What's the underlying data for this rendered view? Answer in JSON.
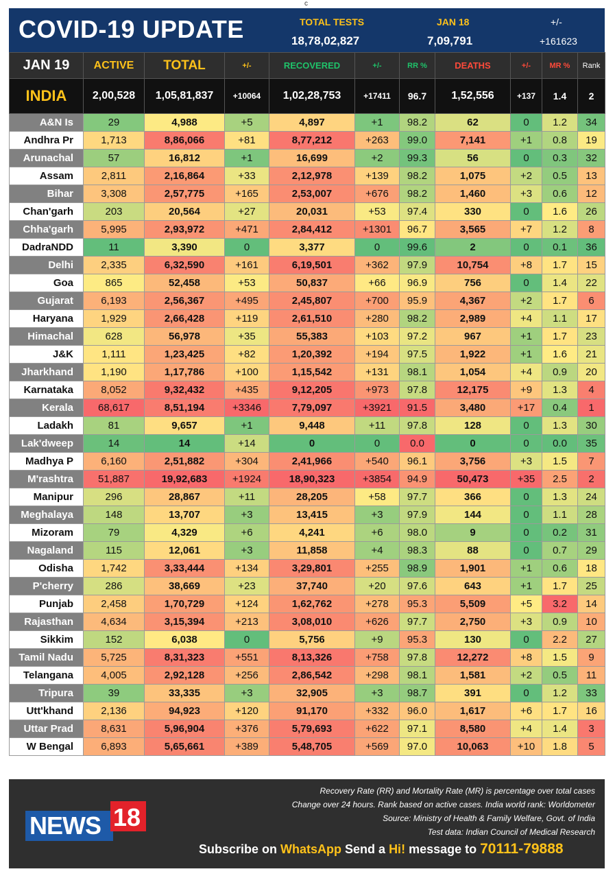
{
  "corner_mark": "c",
  "header": {
    "title": "COVID-19 UPDATE",
    "tests_label": "TOTAL TESTS",
    "tests_value": "18,78,02,827",
    "date_label": "JAN 18",
    "date_value": "7,09,791",
    "change_label": "+/-",
    "change_value": "+161623"
  },
  "columns": [
    "JAN 19",
    "ACTIVE",
    "TOTAL",
    "+/-",
    "RECOVERED",
    "+/-",
    "RR %",
    "DEATHS",
    "+/-",
    "MR %",
    "Rank"
  ],
  "india": [
    "INDIA",
    "2,00,528",
    "1,05,81,837",
    "+10064",
    "1,02,28,753",
    "+17411",
    "96.7",
    "1,52,556",
    "+137",
    "1.4",
    "2"
  ],
  "rows": [
    [
      "A&N Is",
      "29",
      "4,988",
      "+5",
      "4,897",
      "+1",
      "98.2",
      "62",
      "0",
      "1.2",
      "34"
    ],
    [
      "Andhra Pr",
      "1,713",
      "8,86,066",
      "+81",
      "8,77,212",
      "+263",
      "99.0",
      "7,141",
      "+1",
      "0.8",
      "19"
    ],
    [
      "Arunachal",
      "57",
      "16,812",
      "+1",
      "16,699",
      "+2",
      "99.3",
      "56",
      "0",
      "0.3",
      "32"
    ],
    [
      "Assam",
      "2,811",
      "2,16,864",
      "+33",
      "2,12,978",
      "+139",
      "98.2",
      "1,075",
      "+2",
      "0.5",
      "13"
    ],
    [
      "Bihar",
      "3,308",
      "2,57,775",
      "+165",
      "2,53,007",
      "+676",
      "98.2",
      "1,460",
      "+3",
      "0.6",
      "12"
    ],
    [
      "Chan'garh",
      "203",
      "20,564",
      "+27",
      "20,031",
      "+53",
      "97.4",
      "330",
      "0",
      "1.6",
      "26"
    ],
    [
      "Chha'garh",
      "5,995",
      "2,93,972",
      "+471",
      "2,84,412",
      "+1301",
      "96.7",
      "3,565",
      "+7",
      "1.2",
      "8"
    ],
    [
      "DadraNDD",
      "11",
      "3,390",
      "0",
      "3,377",
      "0",
      "99.6",
      "2",
      "0",
      "0.1",
      "36"
    ],
    [
      "Delhi",
      "2,335",
      "6,32,590",
      "+161",
      "6,19,501",
      "+362",
      "97.9",
      "10,754",
      "+8",
      "1.7",
      "15"
    ],
    [
      "Goa",
      "865",
      "52,458",
      "+53",
      "50,837",
      "+66",
      "96.9",
      "756",
      "0",
      "1.4",
      "22"
    ],
    [
      "Gujarat",
      "6,193",
      "2,56,367",
      "+495",
      "2,45,807",
      "+700",
      "95.9",
      "4,367",
      "+2",
      "1.7",
      "6"
    ],
    [
      "Haryana",
      "1,929",
      "2,66,428",
      "+119",
      "2,61,510",
      "+280",
      "98.2",
      "2,989",
      "+4",
      "1.1",
      "17"
    ],
    [
      "Himachal",
      "628",
      "56,978",
      "+35",
      "55,383",
      "+103",
      "97.2",
      "967",
      "+1",
      "1.7",
      "23"
    ],
    [
      "J&K",
      "1,111",
      "1,23,425",
      "+82",
      "1,20,392",
      "+194",
      "97.5",
      "1,922",
      "+1",
      "1.6",
      "21"
    ],
    [
      "Jharkhand",
      "1,190",
      "1,17,786",
      "+100",
      "1,15,542",
      "+131",
      "98.1",
      "1,054",
      "+4",
      "0.9",
      "20"
    ],
    [
      "Karnataka",
      "8,052",
      "9,32,432",
      "+435",
      "9,12,205",
      "+973",
      "97.8",
      "12,175",
      "+9",
      "1.3",
      "4"
    ],
    [
      "Kerala",
      "68,617",
      "8,51,194",
      "+3346",
      "7,79,097",
      "+3921",
      "91.5",
      "3,480",
      "+17",
      "0.4",
      "1"
    ],
    [
      "Ladakh",
      "81",
      "9,657",
      "+1",
      "9,448",
      "+11",
      "97.8",
      "128",
      "0",
      "1.3",
      "30"
    ],
    [
      "Lak'dweep",
      "14",
      "14",
      "+14",
      "0",
      "0",
      "0.0",
      "0",
      "0",
      "0.0",
      "35"
    ],
    [
      "Madhya P",
      "6,160",
      "2,51,882",
      "+304",
      "2,41,966",
      "+540",
      "96.1",
      "3,756",
      "+3",
      "1.5",
      "7"
    ],
    [
      "M'rashtra",
      "51,887",
      "19,92,683",
      "+1924",
      "18,90,323",
      "+3854",
      "94.9",
      "50,473",
      "+35",
      "2.5",
      "2"
    ],
    [
      "Manipur",
      "296",
      "28,867",
      "+11",
      "28,205",
      "+58",
      "97.7",
      "366",
      "0",
      "1.3",
      "24"
    ],
    [
      "Meghalaya",
      "148",
      "13,707",
      "+3",
      "13,415",
      "+3",
      "97.9",
      "144",
      "0",
      "1.1",
      "28"
    ],
    [
      "Mizoram",
      "79",
      "4,329",
      "+6",
      "4,241",
      "+6",
      "98.0",
      "9",
      "0",
      "0.2",
      "31"
    ],
    [
      "Nagaland",
      "115",
      "12,061",
      "+3",
      "11,858",
      "+4",
      "98.3",
      "88",
      "0",
      "0.7",
      "29"
    ],
    [
      "Odisha",
      "1,742",
      "3,33,444",
      "+134",
      "3,29,801",
      "+255",
      "98.9",
      "1,901",
      "+1",
      "0.6",
      "18"
    ],
    [
      "P'cherry",
      "286",
      "38,669",
      "+23",
      "37,740",
      "+20",
      "97.6",
      "643",
      "+1",
      "1.7",
      "25"
    ],
    [
      "Punjab",
      "2,458",
      "1,70,729",
      "+124",
      "1,62,762",
      "+278",
      "95.3",
      "5,509",
      "+5",
      "3.2",
      "14"
    ],
    [
      "Rajasthan",
      "4,634",
      "3,15,394",
      "+213",
      "3,08,010",
      "+626",
      "97.7",
      "2,750",
      "+3",
      "0.9",
      "10"
    ],
    [
      "Sikkim",
      "152",
      "6,038",
      "0",
      "5,756",
      "+9",
      "95.3",
      "130",
      "0",
      "2.2",
      "27"
    ],
    [
      "Tamil Nadu",
      "5,725",
      "8,31,323",
      "+551",
      "8,13,326",
      "+758",
      "97.8",
      "12,272",
      "+8",
      "1.5",
      "9"
    ],
    [
      "Telangana",
      "4,005",
      "2,92,128",
      "+256",
      "2,86,542",
      "+298",
      "98.1",
      "1,581",
      "+2",
      "0.5",
      "11"
    ],
    [
      "Tripura",
      "39",
      "33,335",
      "+3",
      "32,905",
      "+3",
      "98.7",
      "391",
      "0",
      "1.2",
      "33"
    ],
    [
      "Utt'khand",
      "2,136",
      "94,923",
      "+120",
      "91,170",
      "+332",
      "96.0",
      "1,617",
      "+6",
      "1.7",
      "16"
    ],
    [
      "Uttar Prad",
      "8,631",
      "5,96,904",
      "+376",
      "5,79,693",
      "+622",
      "97.1",
      "8,580",
      "+4",
      "1.4",
      "3"
    ],
    [
      "W Bengal",
      "6,893",
      "5,65,661",
      "+389",
      "5,48,705",
      "+569",
      "97.0",
      "10,063",
      "+10",
      "1.8",
      "5"
    ]
  ],
  "colors": {
    "header_bg": "#14376a",
    "accent_yellow": "#ffc21a",
    "recovered_green": "#1fc36a",
    "deaths_red": "#ff4a3a",
    "heat_green": "#63be7b",
    "heat_yellow": "#ffeb84",
    "heat_red": "#f8696b"
  },
  "footer": {
    "notes": [
      "Recovery Rate (RR) and Mortality Rate (MR) is percentage over total cases",
      "Change over 24 hours. Rank based on active cases. India world rank: Worldometer",
      "Source: Ministry of Health & Family Welfare, Govt. of India",
      "Test data: Indian Council of Medical Research"
    ],
    "logo_word": "NEWS",
    "logo_number": "18",
    "subscribe_prefix": "Subscribe on ",
    "subscribe_app": "WhatsApp",
    "subscribe_send": " Send a ",
    "subscribe_hi": "Hi!",
    "subscribe_mid": " message to ",
    "phone_part1": "70111-",
    "phone_part2": "79888"
  }
}
